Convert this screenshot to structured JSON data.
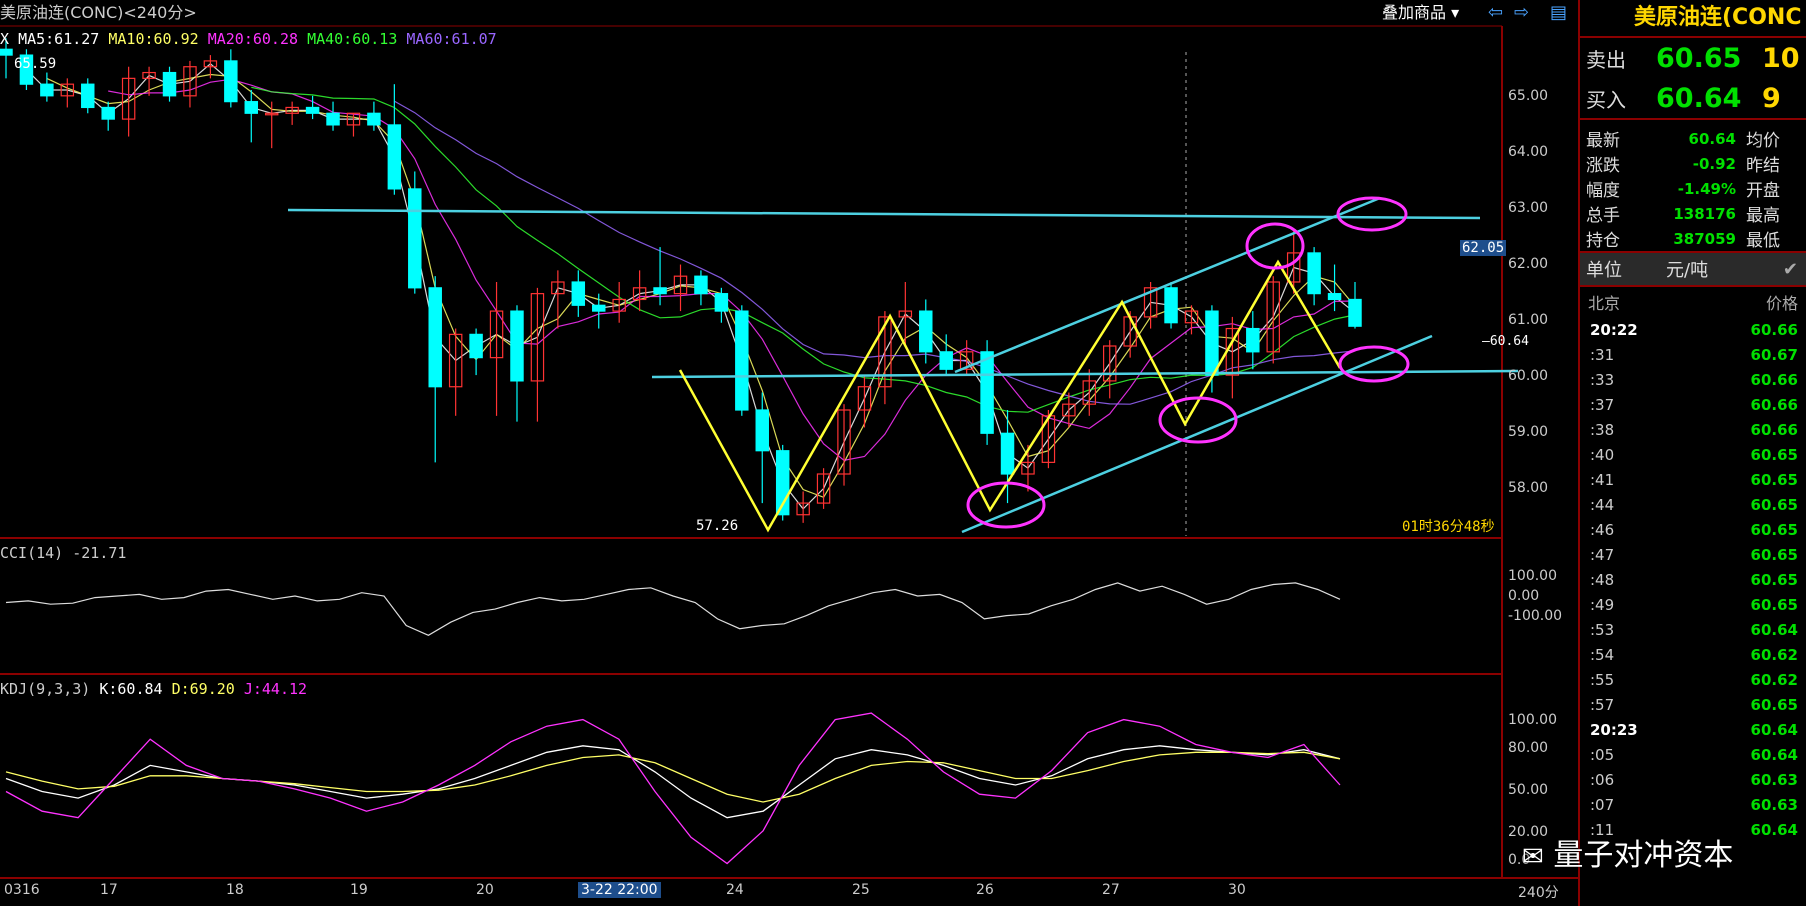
{
  "header": {
    "title": "美原油连(CONC)<240分>",
    "overlay_menu": "叠加商品 ▾"
  },
  "ma_legend": [
    {
      "text": "X",
      "color": "#ffffff"
    },
    {
      "text": "MA5:61.27",
      "color": "#ffffff"
    },
    {
      "text": "MA10:60.92",
      "color": "#ffff66"
    },
    {
      "text": "MA20:60.28",
      "color": "#ff33ff"
    },
    {
      "text": "MA40:60.13",
      "color": "#33ff33"
    },
    {
      "text": "MA60:61.07",
      "color": "#9966ff"
    }
  ],
  "annotations": {
    "high_label": "65.59",
    "low_label": "57.26",
    "current_price_tag": "62.05",
    "last_price_marker": "60.64",
    "countdown": "01时36分48秒"
  },
  "y_ticks_main": [
    "65.00",
    "64.00",
    "63.00",
    "62.00",
    "61.00",
    "60.00",
    "59.00",
    "58.00"
  ],
  "cci": {
    "label": "CCI(14) -21.71",
    "ticks": [
      "100.00",
      "0.00",
      "-100.00"
    ]
  },
  "kdj": {
    "label_prefix": "KDJ(9,3,3)",
    "k": "K:60.84",
    "d": "D:69.20",
    "j": "J:44.12",
    "ticks": [
      "100.00",
      "80.00",
      "50.00",
      "20.00",
      "0.0"
    ]
  },
  "x_ticks": [
    "0316",
    "17",
    "18",
    "19",
    "20",
    "3-22 22:00",
    "24",
    "25",
    "26",
    "27",
    "30"
  ],
  "x_period": "240分",
  "colors": {
    "up": "#ff3333",
    "down": "#00ffff",
    "accent_green": "#00e000",
    "accent_yellow": "#ffd700",
    "trendline": "#4dd0e1",
    "ellipse": "#ff33ff",
    "arrow": "#ffff33"
  },
  "chart_data": {
    "type": "candlestick",
    "title": "美原油连(CONC)<240分>",
    "ylim": [
      57.0,
      65.8
    ],
    "categories": [
      "0316",
      "17",
      "18",
      "19",
      "20",
      "3-22 22:00",
      "24",
      "25",
      "26",
      "27",
      "30"
    ],
    "candles": [
      {
        "o": 65.4,
        "h": 65.59,
        "l": 64.9,
        "c": 65.3
      },
      {
        "o": 65.3,
        "h": 65.4,
        "l": 64.7,
        "c": 64.8
      },
      {
        "o": 64.8,
        "h": 65.0,
        "l": 64.5,
        "c": 64.6
      },
      {
        "o": 64.6,
        "h": 64.9,
        "l": 64.4,
        "c": 64.8
      },
      {
        "o": 64.8,
        "h": 64.9,
        "l": 64.3,
        "c": 64.4
      },
      {
        "o": 64.4,
        "h": 64.5,
        "l": 64.0,
        "c": 64.2
      },
      {
        "o": 64.2,
        "h": 65.1,
        "l": 63.9,
        "c": 64.9
      },
      {
        "o": 64.9,
        "h": 65.1,
        "l": 64.6,
        "c": 65.0
      },
      {
        "o": 65.0,
        "h": 65.1,
        "l": 64.5,
        "c": 64.6
      },
      {
        "o": 64.6,
        "h": 65.2,
        "l": 64.4,
        "c": 65.1
      },
      {
        "o": 65.1,
        "h": 65.3,
        "l": 64.9,
        "c": 65.2
      },
      {
        "o": 65.2,
        "h": 65.4,
        "l": 64.4,
        "c": 64.5
      },
      {
        "o": 64.5,
        "h": 64.7,
        "l": 63.8,
        "c": 64.3
      },
      {
        "o": 64.3,
        "h": 64.5,
        "l": 63.7,
        "c": 64.3
      },
      {
        "o": 64.3,
        "h": 64.5,
        "l": 64.1,
        "c": 64.4
      },
      {
        "o": 64.4,
        "h": 64.6,
        "l": 64.2,
        "c": 64.3
      },
      {
        "o": 64.3,
        "h": 64.5,
        "l": 64.0,
        "c": 64.1
      },
      {
        "o": 64.1,
        "h": 64.3,
        "l": 63.9,
        "c": 64.3
      },
      {
        "o": 64.3,
        "h": 64.5,
        "l": 64.0,
        "c": 64.1
      },
      {
        "o": 64.1,
        "h": 64.8,
        "l": 62.9,
        "c": 63.0
      },
      {
        "o": 63.0,
        "h": 63.3,
        "l": 61.2,
        "c": 61.3
      },
      {
        "o": 61.3,
        "h": 61.5,
        "l": 58.3,
        "c": 59.6
      },
      {
        "o": 59.6,
        "h": 60.6,
        "l": 59.1,
        "c": 60.5
      },
      {
        "o": 60.5,
        "h": 60.6,
        "l": 59.8,
        "c": 60.1
      },
      {
        "o": 60.1,
        "h": 61.4,
        "l": 59.1,
        "c": 60.9
      },
      {
        "o": 60.9,
        "h": 61.0,
        "l": 59.0,
        "c": 59.7
      },
      {
        "o": 59.7,
        "h": 61.3,
        "l": 59.0,
        "c": 61.2
      },
      {
        "o": 61.2,
        "h": 61.6,
        "l": 60.6,
        "c": 61.4
      },
      {
        "o": 61.4,
        "h": 61.6,
        "l": 60.8,
        "c": 61.0
      },
      {
        "o": 61.0,
        "h": 61.2,
        "l": 60.6,
        "c": 60.9
      },
      {
        "o": 60.9,
        "h": 61.4,
        "l": 60.7,
        "c": 61.1
      },
      {
        "o": 61.1,
        "h": 61.6,
        "l": 60.9,
        "c": 61.3
      },
      {
        "o": 61.3,
        "h": 62.0,
        "l": 61.0,
        "c": 61.2
      },
      {
        "o": 61.2,
        "h": 61.7,
        "l": 60.9,
        "c": 61.5
      },
      {
        "o": 61.5,
        "h": 61.6,
        "l": 61.0,
        "c": 61.2
      },
      {
        "o": 61.2,
        "h": 61.3,
        "l": 60.7,
        "c": 60.9
      },
      {
        "o": 60.9,
        "h": 61.0,
        "l": 59.1,
        "c": 59.2
      },
      {
        "o": 59.2,
        "h": 59.5,
        "l": 57.6,
        "c": 58.5
      },
      {
        "o": 58.5,
        "h": 58.6,
        "l": 57.3,
        "c": 57.4
      },
      {
        "o": 57.4,
        "h": 57.8,
        "l": 57.26,
        "c": 57.6
      },
      {
        "o": 57.6,
        "h": 58.2,
        "l": 57.5,
        "c": 58.1
      },
      {
        "o": 58.1,
        "h": 59.3,
        "l": 57.9,
        "c": 59.2
      },
      {
        "o": 59.2,
        "h": 59.8,
        "l": 58.9,
        "c": 59.6
      },
      {
        "o": 59.6,
        "h": 60.9,
        "l": 59.3,
        "c": 60.8
      },
      {
        "o": 60.8,
        "h": 61.4,
        "l": 60.3,
        "c": 60.9
      },
      {
        "o": 60.9,
        "h": 61.1,
        "l": 60.0,
        "c": 60.2
      },
      {
        "o": 60.2,
        "h": 60.5,
        "l": 59.8,
        "c": 59.9
      },
      {
        "o": 59.9,
        "h": 60.4,
        "l": 59.8,
        "c": 60.2
      },
      {
        "o": 60.2,
        "h": 60.4,
        "l": 58.6,
        "c": 58.8
      },
      {
        "o": 58.8,
        "h": 59.2,
        "l": 57.6,
        "c": 58.1
      },
      {
        "o": 58.1,
        "h": 58.6,
        "l": 57.8,
        "c": 58.3
      },
      {
        "o": 58.3,
        "h": 59.2,
        "l": 58.2,
        "c": 59.1
      },
      {
        "o": 59.1,
        "h": 59.5,
        "l": 58.9,
        "c": 59.3
      },
      {
        "o": 59.3,
        "h": 59.9,
        "l": 59.1,
        "c": 59.7
      },
      {
        "o": 59.7,
        "h": 60.4,
        "l": 59.4,
        "c": 60.3
      },
      {
        "o": 60.3,
        "h": 60.9,
        "l": 60.1,
        "c": 60.8
      },
      {
        "o": 60.8,
        "h": 61.4,
        "l": 60.6,
        "c": 61.3
      },
      {
        "o": 61.3,
        "h": 61.4,
        "l": 60.6,
        "c": 60.7
      },
      {
        "o": 60.7,
        "h": 61.0,
        "l": 60.5,
        "c": 60.9
      },
      {
        "o": 60.9,
        "h": 61.0,
        "l": 59.5,
        "c": 59.8
      },
      {
        "o": 59.8,
        "h": 60.8,
        "l": 59.4,
        "c": 60.6
      },
      {
        "o": 60.6,
        "h": 60.9,
        "l": 59.9,
        "c": 60.2
      },
      {
        "o": 60.2,
        "h": 61.5,
        "l": 60.0,
        "c": 61.4
      },
      {
        "o": 61.4,
        "h": 62.3,
        "l": 61.2,
        "c": 61.9
      },
      {
        "o": 61.9,
        "h": 62.0,
        "l": 61.0,
        "c": 61.2
      },
      {
        "o": 61.2,
        "h": 61.7,
        "l": 60.9,
        "c": 61.1
      },
      {
        "o": 61.1,
        "h": 61.4,
        "l": 60.6,
        "c": 60.64
      }
    ],
    "cci": [
      20,
      25,
      15,
      18,
      35,
      40,
      45,
      30,
      35,
      55,
      60,
      45,
      30,
      40,
      25,
      30,
      50,
      40,
      -50,
      -80,
      -40,
      -10,
      0,
      20,
      35,
      25,
      30,
      45,
      60,
      65,
      40,
      20,
      -30,
      -60,
      -50,
      -45,
      -20,
      10,
      30,
      50,
      60,
      40,
      45,
      20,
      -30,
      -20,
      -15,
      10,
      30,
      60,
      80,
      55,
      70,
      45,
      15,
      30,
      60,
      75,
      80,
      60,
      30
    ],
    "kdj_k": [
      50,
      40,
      35,
      45,
      60,
      55,
      50,
      48,
      45,
      40,
      35,
      38,
      42,
      50,
      60,
      70,
      75,
      72,
      55,
      35,
      20,
      25,
      45,
      65,
      72,
      68,
      60,
      50,
      45,
      52,
      65,
      72,
      75,
      72,
      70,
      68,
      72,
      65
    ],
    "kdj_d": [
      55,
      48,
      42,
      44,
      52,
      52,
      50,
      48,
      46,
      43,
      40,
      40,
      41,
      45,
      52,
      60,
      66,
      68,
      62,
      50,
      38,
      32,
      38,
      50,
      60,
      63,
      62,
      56,
      50,
      50,
      56,
      63,
      68,
      70,
      70,
      69,
      70,
      65
    ],
    "kdj_j": [
      40,
      25,
      20,
      50,
      80,
      60,
      50,
      48,
      42,
      35,
      25,
      32,
      45,
      60,
      78,
      90,
      95,
      80,
      40,
      5,
      -15,
      10,
      60,
      95,
      100,
      80,
      55,
      38,
      35,
      56,
      85,
      95,
      90,
      76,
      70,
      66,
      76,
      45
    ]
  },
  "right_panel": {
    "title": "美原油连(CONC",
    "ask": {
      "label": "卖出",
      "price": "60.65",
      "vol": "10"
    },
    "bid": {
      "label": "买入",
      "price": "60.64",
      "vol": "9"
    },
    "stats": [
      {
        "k": "最新",
        "v": "60.64",
        "k2": "均价"
      },
      {
        "k": "涨跌",
        "v": "-0.92",
        "k2": "昨结"
      },
      {
        "k": "幅度",
        "v": "-1.49%",
        "k2": "开盘"
      },
      {
        "k": "总手",
        "v": "138176",
        "k2": "最高"
      },
      {
        "k": "持仓",
        "v": "387059",
        "k2": "最低"
      }
    ],
    "unit_label": "单位",
    "unit_value": "元/吨",
    "tick_head_left": "北京",
    "tick_head_right": "价格",
    "ticks": [
      {
        "t": "20:22",
        "p": "60.66",
        "hour": true
      },
      {
        "t": ":31",
        "p": "60.67"
      },
      {
        "t": ":33",
        "p": "60.66"
      },
      {
        "t": ":37",
        "p": "60.66"
      },
      {
        "t": ":38",
        "p": "60.66"
      },
      {
        "t": ":40",
        "p": "60.65"
      },
      {
        "t": ":41",
        "p": "60.65"
      },
      {
        "t": ":44",
        "p": "60.65"
      },
      {
        "t": ":46",
        "p": "60.65"
      },
      {
        "t": ":47",
        "p": "60.65"
      },
      {
        "t": ":48",
        "p": "60.65"
      },
      {
        "t": ":49",
        "p": "60.65"
      },
      {
        "t": ":53",
        "p": "60.64"
      },
      {
        "t": ":54",
        "p": "60.62"
      },
      {
        "t": ":55",
        "p": "60.62"
      },
      {
        "t": ":57",
        "p": "60.65"
      },
      {
        "t": "20:23",
        "p": "60.64",
        "hour": true
      },
      {
        "t": ":05",
        "p": "60.64"
      },
      {
        "t": ":06",
        "p": "60.63"
      },
      {
        "t": ":07",
        "p": "60.63"
      },
      {
        "t": ":11",
        "p": "60.64"
      }
    ]
  },
  "watermark": "量子对冲资本"
}
